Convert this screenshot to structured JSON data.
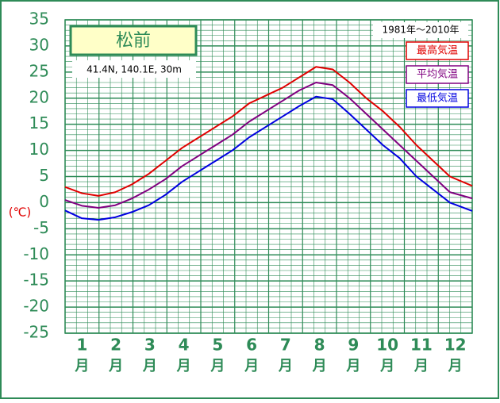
{
  "chart_data": {
    "type": "line",
    "title": "松前",
    "subtitle": "41.4N, 140.1E, 30m",
    "period": "1981年～2010年",
    "y_label": "(℃)",
    "categories": [
      "1",
      "2",
      "3",
      "4",
      "5",
      "6",
      "7",
      "8",
      "9",
      "10",
      "11",
      "12"
    ],
    "category_unit": "月",
    "x": [
      0,
      15,
      30,
      45,
      60,
      75,
      90,
      105,
      120,
      135,
      150,
      165,
      180,
      195,
      210,
      225,
      240,
      255,
      270,
      285,
      300,
      315,
      330,
      345,
      365
    ],
    "xlim": [
      0,
      365
    ],
    "series": [
      {
        "name": "最高気温",
        "color": "#e00000",
        "values": [
          3.0,
          1.8,
          1.3,
          2.0,
          3.5,
          5.5,
          8.0,
          10.5,
          12.5,
          14.5,
          16.5,
          19.0,
          20.5,
          22.0,
          24.0,
          26.0,
          25.5,
          23.0,
          20.0,
          17.5,
          14.5,
          11.0,
          8.0,
          5.0,
          3.2
        ]
      },
      {
        "name": "平均気温",
        "color": "#800080",
        "values": [
          0.5,
          -0.6,
          -1.0,
          -0.5,
          0.8,
          2.5,
          4.5,
          7.0,
          9.0,
          11.0,
          13.0,
          15.5,
          17.5,
          19.5,
          21.5,
          23.0,
          22.5,
          20.0,
          17.0,
          14.0,
          11.0,
          8.0,
          5.0,
          2.0,
          0.8
        ]
      },
      {
        "name": "最低気温",
        "color": "#0000e0",
        "values": [
          -1.5,
          -3.0,
          -3.3,
          -2.8,
          -1.8,
          -0.5,
          1.5,
          4.0,
          6.0,
          8.0,
          10.0,
          12.5,
          14.5,
          16.5,
          18.5,
          20.3,
          19.8,
          17.0,
          14.0,
          11.0,
          8.5,
          5.0,
          2.5,
          0.0,
          -1.6
        ]
      }
    ],
    "ylim": [
      -25,
      35
    ],
    "yticks": [
      -25,
      -20,
      -15,
      -10,
      -5,
      0,
      5,
      10,
      15,
      20,
      25,
      30,
      35
    ],
    "grid": true
  }
}
